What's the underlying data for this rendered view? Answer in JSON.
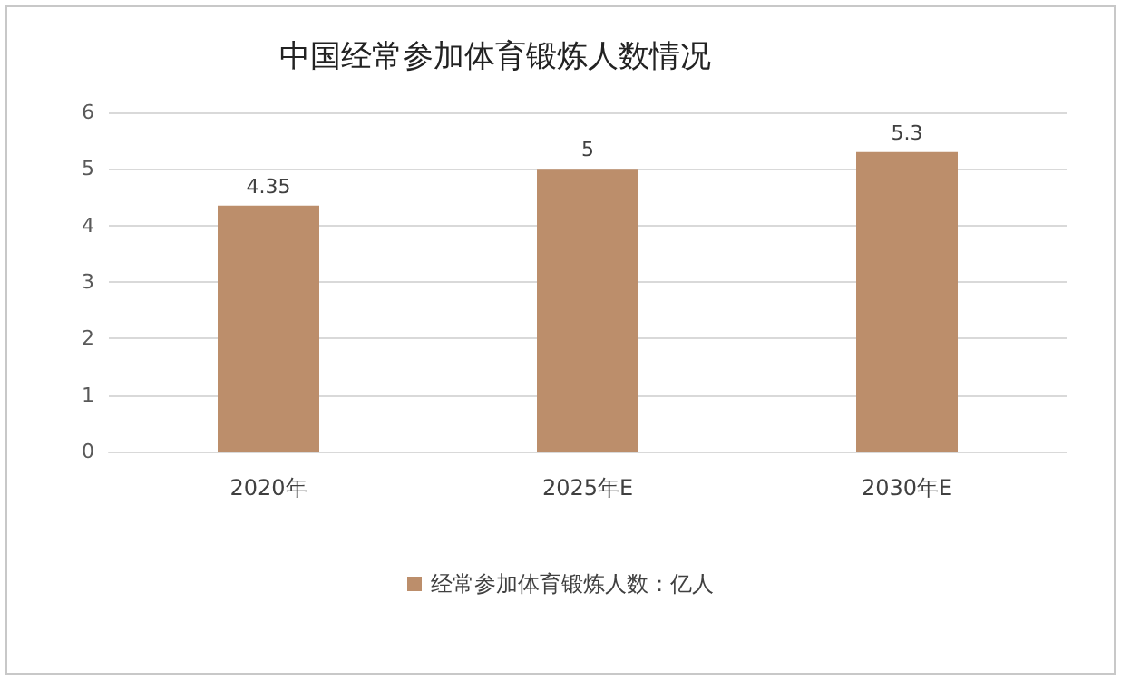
{
  "chart_data": {
    "type": "bar",
    "title": "中国经常参加体育锻炼人数情况",
    "categories": [
      "2020年",
      "2025年E",
      "2030年E"
    ],
    "series": [
      {
        "name": "经常参加体育锻炼人数：亿人",
        "color": "#bc8e6b",
        "values": [
          4.35,
          5,
          5.3
        ]
      }
    ],
    "ylim": [
      0,
      6
    ],
    "yticks": [
      0,
      1,
      2,
      3,
      4,
      5,
      6
    ],
    "grid": "y",
    "legend": "bottom",
    "data_labels": true
  }
}
